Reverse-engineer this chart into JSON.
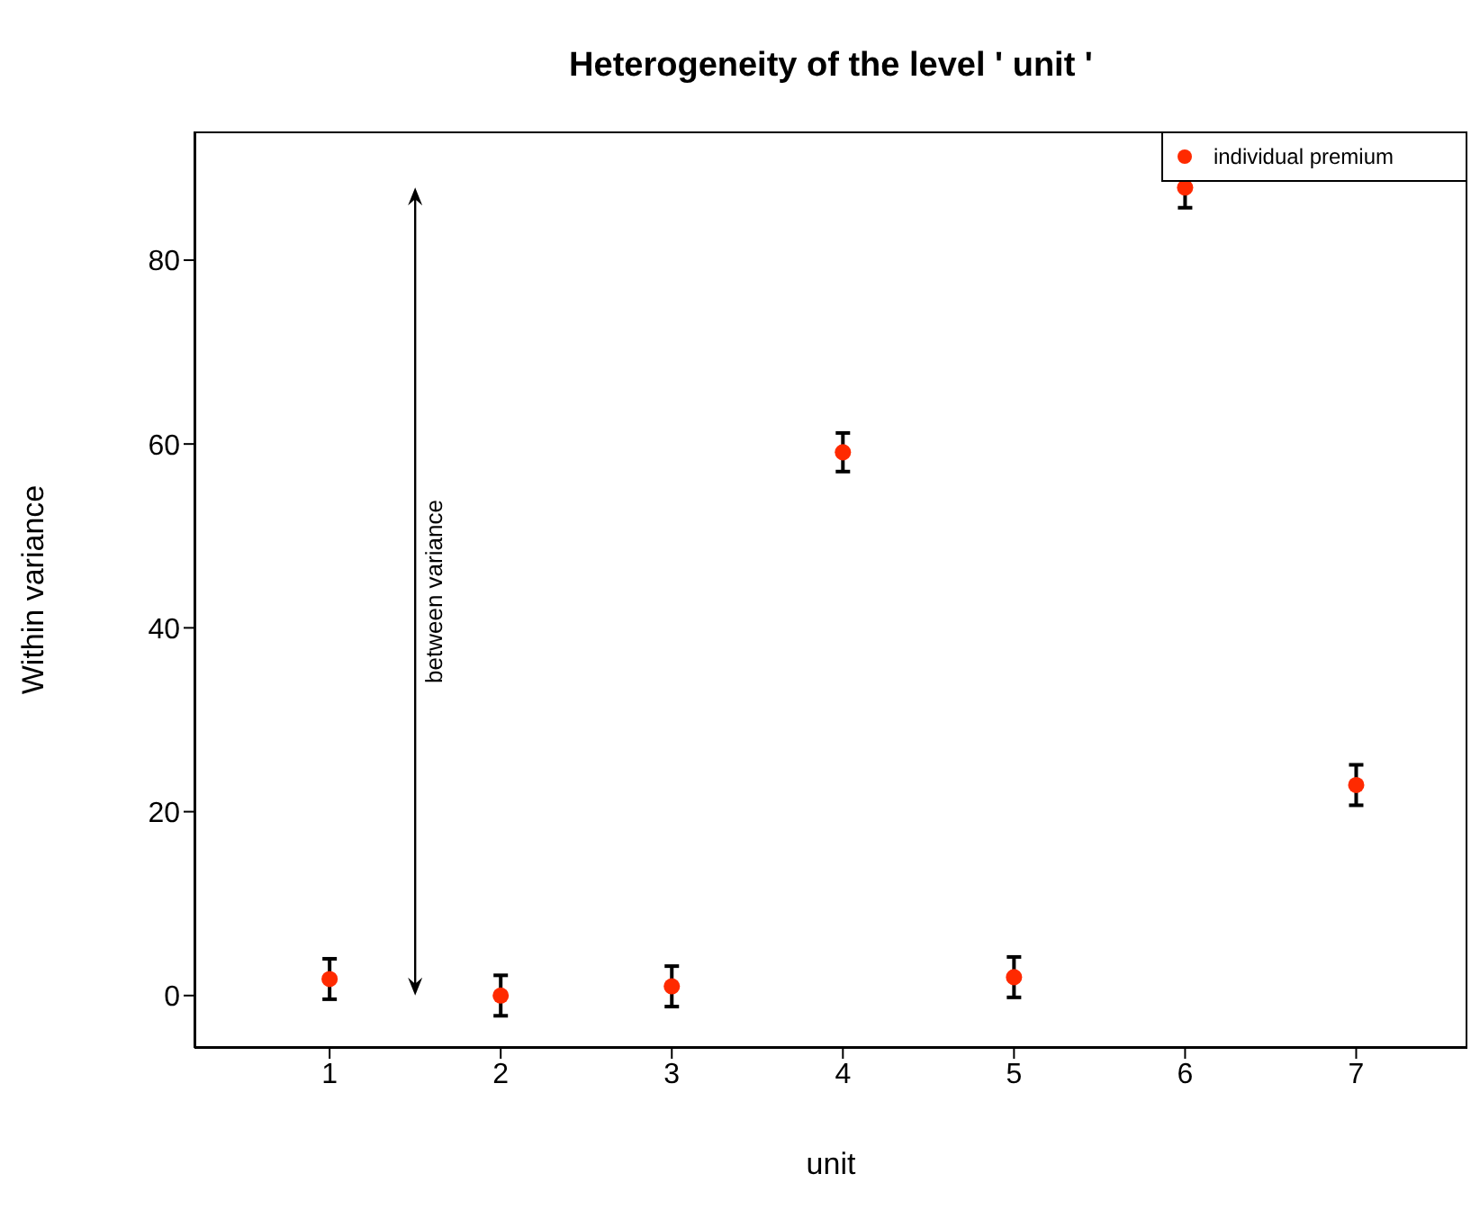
{
  "chart_data": {
    "type": "scatter",
    "title": "Heterogeneity of the level ' unit '",
    "xlabel": "unit",
    "ylabel": "Within variance",
    "x": [
      1,
      2,
      3,
      4,
      5,
      6,
      7
    ],
    "series": [
      {
        "name": "individual premium",
        "color": "#ff2a00",
        "values": [
          1.8,
          0,
          1.0,
          59.1,
          2.0,
          87.9,
          22.9
        ],
        "errors": [
          2.2,
          2.2,
          2.2,
          2.1,
          2.2,
          2.2,
          2.2
        ]
      }
    ],
    "xlim": [
      0.21,
      7.65
    ],
    "xticks": [
      1,
      2,
      3,
      4,
      5,
      6,
      7
    ],
    "ylim": [
      -5.7,
      94
    ],
    "yticks": [
      0,
      20,
      40,
      60,
      80
    ],
    "annotations": [
      "between variance"
    ],
    "marker": "circle",
    "legend": "top right",
    "grid": false
  }
}
